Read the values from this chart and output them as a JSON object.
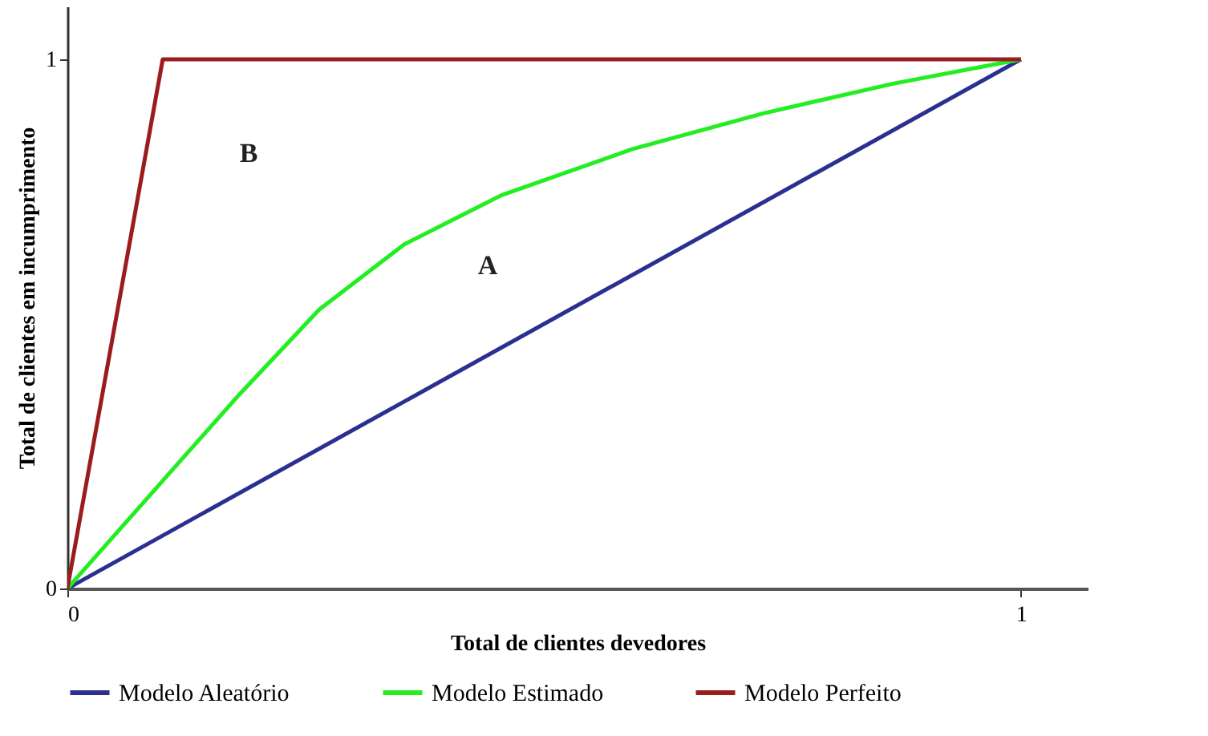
{
  "chart_data": {
    "type": "line",
    "xlabel": "Total de clientes devedores",
    "ylabel": "Total de clientes em incumprimento",
    "xlim": [
      0,
      1.07
    ],
    "ylim": [
      0,
      1.1
    ],
    "xticks": [
      0,
      1
    ],
    "yticks": [
      0,
      1
    ],
    "grid": false,
    "legend": "bottom",
    "marker": "none",
    "line_style": "solid",
    "annotations": [
      "A",
      "B"
    ],
    "series": [
      {
        "name": "Modelo Aleatório",
        "color": "#2b2f90",
        "x": [
          0,
          1
        ],
        "values": [
          0,
          1
        ]
      },
      {
        "name": "Modelo Estimado",
        "color": "#22ee22",
        "x": [
          0,
          0.113,
          0.18,
          0.264,
          0.353,
          0.455,
          0.592,
          0.73,
          0.866,
          1
        ],
        "values": [
          0,
          0.23,
          0.366,
          0.527,
          0.65,
          0.743,
          0.83,
          0.898,
          0.954,
          1
        ]
      },
      {
        "name": "Modelo Perfeito",
        "color": "#9b1c1c",
        "x": [
          0,
          0.1,
          1
        ],
        "values": [
          0,
          1,
          1
        ]
      }
    ]
  }
}
